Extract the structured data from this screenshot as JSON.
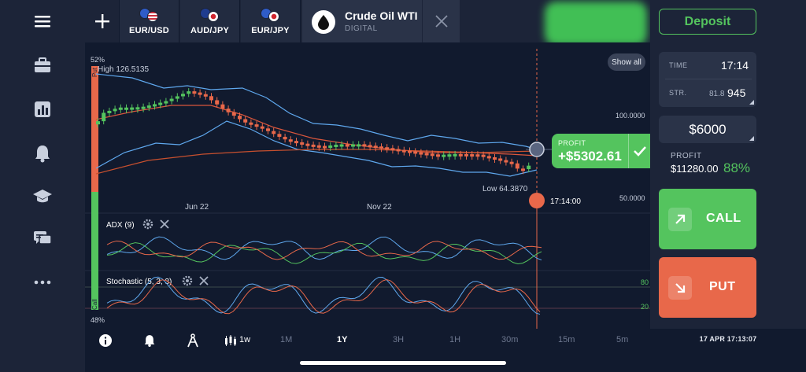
{
  "topbar": {
    "tabs": [
      {
        "label": "EUR/USD",
        "flags": [
          "#2f5cc8",
          "#d9d9d9"
        ]
      },
      {
        "label": "AUD/JPY",
        "flags": [
          "#1f3c8f",
          "#ffffff"
        ]
      },
      {
        "label": "EUR/JPY",
        "flags": [
          "#2f5cc8",
          "#ffffff"
        ]
      }
    ],
    "active": {
      "name": "Crude Oil WTI",
      "subtitle": "DIGITAL"
    }
  },
  "chart": {
    "show_all": "Show all",
    "high_label": "High  126.5135",
    "low_label": "Low  64.3870",
    "price_100": "100.0000",
    "price_50": "50.0000",
    "x_labels": [
      "Jun 22",
      "Nov 22"
    ],
    "expiry_time": "17:14:00",
    "gauge_top": "52%",
    "gauge_bottom": "48%",
    "gauge_put": "Put",
    "gauge_call": "Call",
    "adx_label": "ADX (9)",
    "stoch_label": "Stochastic (5, 3, 3)",
    "stoch_80": "80",
    "stoch_20": "20",
    "colors": {
      "up": "#54c45e",
      "down": "#e8684a",
      "band": "#5fa8ee"
    }
  },
  "profit_badge": {
    "label": "PROFIT",
    "value": "+$5302.61"
  },
  "bottombar": {
    "tf_label": "1w",
    "periods": [
      "1M",
      "1Y",
      "3H",
      "1H",
      "30m",
      "15m",
      "5m"
    ],
    "active_period": "1Y",
    "timestamp": "17 APR 17:13:07"
  },
  "panel": {
    "deposit": "Deposit",
    "time_label": "TIME",
    "time_value": "17:14",
    "strike_label": "STR.",
    "strike_small": "81.8",
    "strike_value": "945",
    "amount": "$6000",
    "profit_label": "PROFIT",
    "profit_value": "$11280.00",
    "profit_pct": "88%",
    "call": "CALL",
    "put": "PUT"
  }
}
